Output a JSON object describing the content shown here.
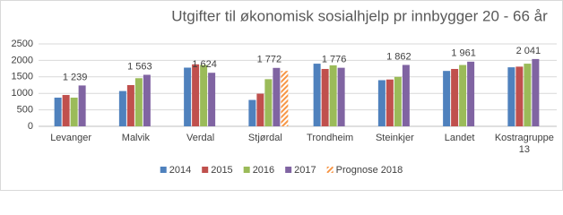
{
  "chart_data": {
    "type": "bar",
    "title": "Utgifter til økonomisk sosialhjelp pr innbygger 20 - 66 år",
    "categories": [
      "Levanger",
      "Malvik",
      "Verdal",
      "Stjørdal",
      "Trondheim",
      "Steinkjer",
      "Landet",
      "Kostragruppe 13"
    ],
    "series": [
      {
        "name": "2014",
        "color": "#4f81bd",
        "values": [
          870,
          1070,
          1780,
          800,
          1900,
          1400,
          1680,
          1790
        ]
      },
      {
        "name": "2015",
        "color": "#c0504d",
        "values": [
          950,
          1250,
          1880,
          990,
          1740,
          1420,
          1740,
          1810
        ]
      },
      {
        "name": "2016",
        "color": "#9bbb59",
        "values": [
          870,
          1460,
          1860,
          1430,
          1850,
          1500,
          1860,
          1900
        ]
      },
      {
        "name": "2017",
        "color": "#8064a2",
        "values": [
          1239,
          1563,
          1624,
          1772,
          1776,
          1862,
          1961,
          2041
        ],
        "value_labels": [
          "1 239",
          "1 563",
          "1 624",
          "1 772",
          "1 776",
          "1 862",
          "1 961",
          "2 041"
        ]
      },
      {
        "name": "Prognose 2018",
        "color": "#f79646",
        "hatch": true,
        "values": [
          null,
          null,
          null,
          1680,
          null,
          null,
          null,
          null
        ]
      }
    ],
    "ylim": [
      0,
      2500
    ],
    "yticks": [
      0,
      500,
      1000,
      1500,
      2000,
      2500
    ],
    "grid": true
  }
}
